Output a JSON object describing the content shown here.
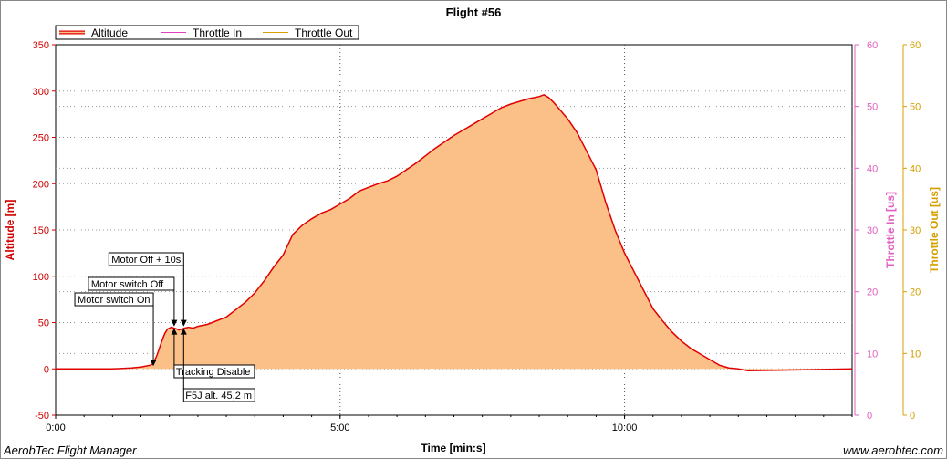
{
  "footer": {
    "app_name": "AerobTec Flight Manager",
    "website": "www.aerobtec.com"
  },
  "chart_data": {
    "type": "area",
    "title": "Flight #56",
    "xlabel": "Time [min:s]",
    "ylabel": "Altitude [m]",
    "y2label": "Throttle In [us]",
    "y3label": "Throttle Out [us]",
    "x_ticks": [
      "0:00",
      "5:00",
      "10:00"
    ],
    "x_tick_seconds": [
      0,
      300,
      600
    ],
    "xlim": [
      0,
      840
    ],
    "ylim": [
      -50,
      350
    ],
    "y_ticks": [
      -50,
      0,
      50,
      100,
      150,
      200,
      250,
      300,
      350
    ],
    "y2lim": [
      0,
      60
    ],
    "y2_ticks": [
      0,
      10,
      20,
      30,
      40,
      50,
      60
    ],
    "y3lim": [
      0,
      60
    ],
    "y3_ticks": [
      0,
      10,
      20,
      30,
      40,
      50,
      60
    ],
    "grid": true,
    "legend_position": "top-left",
    "colors": {
      "altitude_line": "#e00000",
      "altitude_fill": "#fbbf88",
      "throttle_in": "#e040c0",
      "throttle_out": "#d4a000",
      "axis_altitude": "#d00000",
      "axis_throttle_in": "#e060c0",
      "axis_throttle_out": "#d4a000",
      "grid": "#999999"
    },
    "series": [
      {
        "name": "Altitude",
        "x": [
          0,
          60,
          80,
          90,
          100,
          103,
          107,
          112,
          115,
          118,
          122,
          125,
          128,
          130,
          133,
          136,
          140,
          145,
          150,
          160,
          170,
          180,
          190,
          200,
          210,
          220,
          230,
          240,
          250,
          260,
          270,
          280,
          290,
          300,
          310,
          320,
          330,
          340,
          350,
          360,
          370,
          380,
          390,
          400,
          410,
          420,
          430,
          440,
          450,
          460,
          470,
          480,
          490,
          500,
          510,
          515,
          520,
          525,
          530,
          540,
          550,
          560,
          570,
          580,
          590,
          600,
          610,
          620,
          630,
          640,
          650,
          660,
          670,
          680,
          690,
          700,
          710,
          720,
          730,
          840
        ],
        "values": [
          0,
          0,
          1,
          2,
          4,
          6,
          15,
          30,
          38,
          43,
          45,
          44,
          43,
          42,
          43,
          44,
          45,
          44,
          46,
          48,
          52,
          56,
          64,
          72,
          82,
          95,
          110,
          123,
          145,
          155,
          162,
          168,
          172,
          178,
          184,
          192,
          196,
          200,
          203,
          208,
          215,
          222,
          230,
          238,
          245,
          252,
          258,
          264,
          270,
          276,
          282,
          286,
          289,
          292,
          294,
          296,
          293,
          288,
          282,
          270,
          255,
          235,
          215,
          180,
          150,
          125,
          105,
          85,
          65,
          52,
          40,
          30,
          22,
          16,
          10,
          4,
          1,
          0,
          -2,
          0
        ]
      },
      {
        "name": "Throttle In",
        "values": []
      },
      {
        "name": "Throttle Out",
        "values": []
      }
    ],
    "markers": [
      {
        "label": "Motor switch On",
        "x": 103,
        "y": 2,
        "direction": "down"
      },
      {
        "label": "Motor switch Off",
        "x": 125,
        "y": 45,
        "direction": "down"
      },
      {
        "label": "Motor Off + 10s",
        "x": 135,
        "y": 45,
        "direction": "down"
      },
      {
        "label": "Tracking Disable",
        "x": 125,
        "y": 45,
        "direction": "up"
      },
      {
        "label": "F5J alt. 45,2 m",
        "x": 135,
        "y": 45,
        "direction": "up"
      }
    ]
  }
}
